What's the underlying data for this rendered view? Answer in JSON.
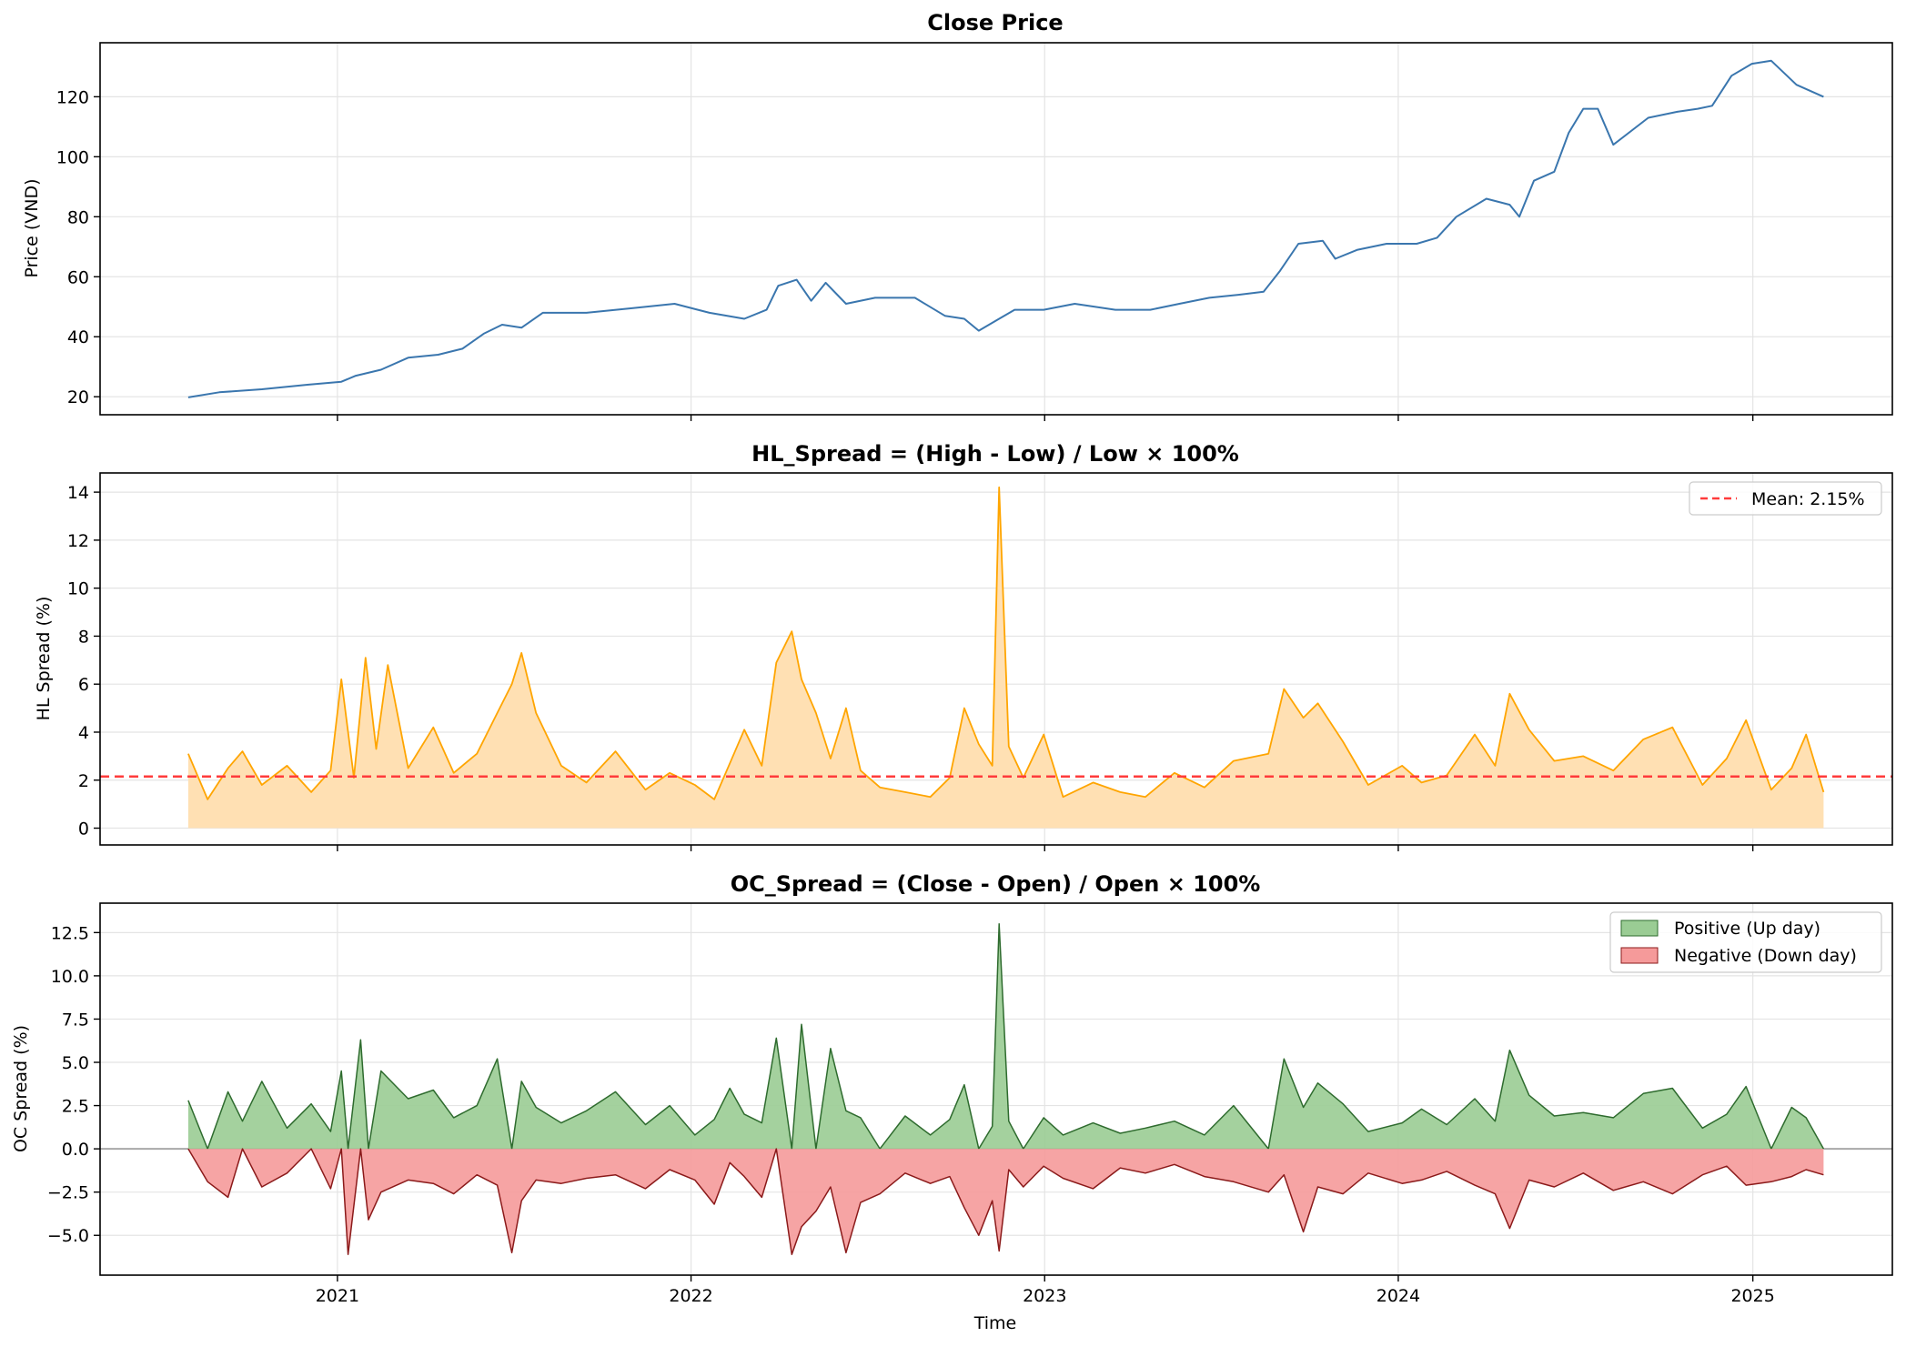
{
  "figure": {
    "xlabel": "Time",
    "x_ticks": [
      "2021",
      "2022",
      "2023",
      "2024",
      "2025"
    ],
    "x_tick_dates": [
      "2021-01-01",
      "2022-01-01",
      "2023-01-01",
      "2024-01-01",
      "2025-01-01"
    ],
    "x_range": [
      "2020-05-01",
      "2025-05-25"
    ]
  },
  "colors": {
    "price_line": "#3a76ae",
    "hl_line": "#ffa500",
    "hl_fill": "#ffe0b3",
    "mean_line": "#ff3b3b",
    "positive": "#2e6b2e",
    "positive_fill": "#9acc94",
    "negative": "#8b1a1a",
    "negative_fill": "#f59a9a",
    "zero_line": "#a8a8a8",
    "grid": "#e4e4e4"
  },
  "chart_data": [
    {
      "type": "line",
      "title": "Close Price",
      "xlabel": "",
      "ylabel": "Price (VND)",
      "ylim": [
        14,
        138
      ],
      "y_ticks": [
        "20",
        "40",
        "60",
        "80",
        "100",
        "120"
      ],
      "grid": true,
      "x": [
        "2020-07-31",
        "2020-09-01",
        "2020-10-15",
        "2020-12-01",
        "2021-01-05",
        "2021-01-20",
        "2021-02-15",
        "2021-03-15",
        "2021-04-15",
        "2021-05-10",
        "2021-06-01",
        "2021-06-20",
        "2021-07-10",
        "2021-08-01",
        "2021-09-15",
        "2021-11-01",
        "2021-12-15",
        "2022-01-20",
        "2022-02-25",
        "2022-03-20",
        "2022-04-01",
        "2022-04-20",
        "2022-05-05",
        "2022-05-20",
        "2022-06-10",
        "2022-07-10",
        "2022-08-20",
        "2022-09-20",
        "2022-10-10",
        "2022-10-25",
        "2022-11-15",
        "2022-12-01",
        "2022-12-31",
        "2023-02-01",
        "2023-03-15",
        "2023-04-20",
        "2023-05-20",
        "2023-06-20",
        "2023-07-20",
        "2023-08-15",
        "2023-09-01",
        "2023-09-20",
        "2023-10-15",
        "2023-10-28",
        "2023-11-20",
        "2023-12-20",
        "2024-01-20",
        "2024-02-10",
        "2024-03-01",
        "2024-04-01",
        "2024-04-25",
        "2024-05-05",
        "2024-05-20",
        "2024-06-10",
        "2024-06-25",
        "2024-07-10",
        "2024-07-25",
        "2024-08-10",
        "2024-09-15",
        "2024-10-15",
        "2024-11-05",
        "2024-11-20",
        "2024-12-10",
        "2024-12-31",
        "2025-01-20",
        "2025-02-15",
        "2025-03-15"
      ],
      "series": [
        {
          "values": [
            19.8,
            21.5,
            22.5,
            24,
            25,
            27,
            29,
            33,
            34,
            36,
            41,
            44,
            43,
            48,
            48,
            49.5,
            51,
            48,
            46,
            49,
            57,
            59,
            52,
            58,
            51,
            53,
            53,
            47,
            46,
            42,
            46,
            49,
            49,
            51,
            49,
            49,
            51,
            53,
            54,
            55,
            62,
            71,
            72,
            66,
            69,
            71,
            71,
            73,
            80,
            86,
            84,
            80,
            92,
            95,
            108,
            116,
            116,
            104,
            113,
            115,
            116,
            117,
            127,
            131,
            132,
            124,
            120
          ]
        }
      ]
    },
    {
      "type": "area",
      "title": "HL_Spread = (High - Low) / Low × 100%",
      "xlabel": "",
      "ylabel": "HL Spread (%)",
      "ylim": [
        -0.7,
        14.8
      ],
      "y_ticks": [
        "0",
        "2",
        "4",
        "6",
        "8",
        "10",
        "12",
        "14"
      ],
      "legend": [
        {
          "label": "Mean: 2.15%"
        }
      ],
      "legend_position": "upper right",
      "mean": 2.15,
      "grid": true,
      "x": [
        "2020-07-31",
        "2020-08-20",
        "2020-09-10",
        "2020-09-25",
        "2020-10-15",
        "2020-11-10",
        "2020-12-05",
        "2020-12-25",
        "2021-01-05",
        "2021-01-18",
        "2021-01-30",
        "2021-02-10",
        "2021-02-22",
        "2021-03-15",
        "2021-04-10",
        "2021-05-01",
        "2021-05-25",
        "2021-06-15",
        "2021-06-30",
        "2021-07-10",
        "2021-07-25",
        "2021-08-20",
        "2021-09-15",
        "2021-10-15",
        "2021-11-15",
        "2021-12-10",
        "2022-01-05",
        "2022-01-25",
        "2022-02-10",
        "2022-02-25",
        "2022-03-15",
        "2022-03-30",
        "2022-04-15",
        "2022-04-25",
        "2022-05-10",
        "2022-05-25",
        "2022-06-10",
        "2022-06-25",
        "2022-07-15",
        "2022-08-10",
        "2022-09-05",
        "2022-09-25",
        "2022-10-10",
        "2022-10-25",
        "2022-11-08",
        "2022-11-15",
        "2022-11-25",
        "2022-12-10",
        "2022-12-31",
        "2023-01-20",
        "2023-02-20",
        "2023-03-20",
        "2023-04-15",
        "2023-05-15",
        "2023-06-15",
        "2023-07-15",
        "2023-08-20",
        "2023-09-05",
        "2023-09-25",
        "2023-10-10",
        "2023-11-05",
        "2023-12-01",
        "2024-01-05",
        "2024-01-25",
        "2024-02-20",
        "2024-03-20",
        "2024-04-10",
        "2024-04-25",
        "2024-05-15",
        "2024-06-10",
        "2024-07-10",
        "2024-08-10",
        "2024-09-10",
        "2024-10-10",
        "2024-11-10",
        "2024-12-05",
        "2024-12-25",
        "2025-01-20",
        "2025-02-10",
        "2025-02-25",
        "2025-03-15"
      ],
      "series": [
        {
          "values": [
            3.1,
            1.2,
            2.5,
            3.2,
            1.8,
            2.6,
            1.5,
            2.4,
            6.2,
            2.1,
            7.1,
            3.3,
            6.8,
            2.5,
            4.2,
            2.3,
            3.1,
            4.8,
            6.0,
            7.3,
            4.8,
            2.6,
            1.9,
            3.2,
            1.6,
            2.3,
            1.8,
            1.2,
            2.7,
            4.1,
            2.6,
            6.9,
            8.2,
            6.2,
            4.8,
            2.9,
            5.0,
            2.4,
            1.7,
            1.5,
            1.3,
            2.1,
            5.0,
            3.5,
            2.6,
            14.2,
            3.4,
            2.1,
            3.9,
            1.3,
            1.9,
            1.5,
            1.3,
            2.3,
            1.7,
            2.8,
            3.1,
            5.8,
            4.6,
            5.2,
            3.6,
            1.8,
            2.6,
            1.9,
            2.2,
            3.9,
            2.6,
            5.6,
            4.1,
            2.8,
            3.0,
            2.4,
            3.7,
            4.2,
            1.8,
            2.9,
            4.5,
            1.6,
            2.5,
            3.9,
            1.5
          ]
        }
      ]
    },
    {
      "type": "area",
      "title": "OC_Spread = (Close - Open) / Open × 100%",
      "xlabel": "Time",
      "ylabel": "OC Spread (%)",
      "ylim": [
        -7.3,
        14.2
      ],
      "y_ticks": [
        "−5.0",
        "−2.5",
        "0.0",
        "2.5",
        "5.0",
        "7.5",
        "10.0",
        "12.5"
      ],
      "legend": [
        {
          "label": "Positive (Up day)"
        },
        {
          "label": "Negative (Down day)"
        }
      ],
      "legend_position": "upper right",
      "grid": true,
      "x": [
        "2020-07-31",
        "2020-08-20",
        "2020-09-10",
        "2020-09-25",
        "2020-10-15",
        "2020-11-10",
        "2020-12-05",
        "2020-12-25",
        "2021-01-05",
        "2021-01-12",
        "2021-01-25",
        "2021-02-02",
        "2021-02-15",
        "2021-03-15",
        "2021-04-10",
        "2021-05-01",
        "2021-05-25",
        "2021-06-15",
        "2021-06-30",
        "2021-07-10",
        "2021-07-25",
        "2021-08-20",
        "2021-09-15",
        "2021-10-15",
        "2021-11-15",
        "2021-12-10",
        "2022-01-05",
        "2022-01-25",
        "2022-02-10",
        "2022-02-25",
        "2022-03-15",
        "2022-03-30",
        "2022-04-15",
        "2022-04-25",
        "2022-05-10",
        "2022-05-25",
        "2022-06-10",
        "2022-06-25",
        "2022-07-15",
        "2022-08-10",
        "2022-09-05",
        "2022-09-25",
        "2022-10-10",
        "2022-10-25",
        "2022-11-08",
        "2022-11-15",
        "2022-11-25",
        "2022-12-10",
        "2022-12-31",
        "2023-01-20",
        "2023-02-20",
        "2023-03-20",
        "2023-04-15",
        "2023-05-15",
        "2023-06-15",
        "2023-07-15",
        "2023-08-20",
        "2023-09-05",
        "2023-09-25",
        "2023-10-10",
        "2023-11-05",
        "2023-12-01",
        "2024-01-05",
        "2024-01-25",
        "2024-02-20",
        "2024-03-20",
        "2024-04-10",
        "2024-04-25",
        "2024-05-15",
        "2024-06-10",
        "2024-07-10",
        "2024-08-10",
        "2024-09-10",
        "2024-10-10",
        "2024-11-10",
        "2024-12-05",
        "2024-12-25",
        "2025-01-20",
        "2025-02-10",
        "2025-02-25",
        "2025-03-15"
      ],
      "series": [
        {
          "name": "Positive (Up day)",
          "values": [
            2.8,
            0.0,
            3.3,
            1.6,
            3.9,
            1.2,
            2.6,
            1.0,
            4.5,
            0.0,
            6.3,
            0.0,
            4.5,
            2.9,
            3.4,
            1.8,
            2.5,
            5.2,
            0.0,
            3.9,
            2.4,
            1.5,
            2.2,
            3.3,
            1.4,
            2.5,
            0.8,
            1.7,
            3.5,
            2.0,
            1.5,
            6.4,
            0.0,
            7.2,
            0.0,
            5.8,
            2.2,
            1.8,
            0.0,
            1.9,
            0.8,
            1.7,
            3.7,
            0.0,
            1.3,
            13.0,
            1.6,
            0.0,
            1.8,
            0.8,
            1.5,
            0.9,
            1.2,
            1.6,
            0.8,
            2.5,
            0.0,
            5.2,
            2.4,
            3.8,
            2.6,
            1.0,
            1.5,
            2.3,
            1.4,
            2.9,
            1.6,
            5.7,
            3.1,
            1.9,
            2.1,
            1.8,
            3.2,
            3.5,
            1.2,
            2.0,
            3.6,
            0.0,
            2.4,
            1.8,
            0.0
          ]
        },
        {
          "name": "Negative (Down day)",
          "values": [
            0.0,
            -1.9,
            -2.8,
            0.0,
            -2.2,
            -1.4,
            0.0,
            -2.3,
            0.0,
            -6.1,
            0.0,
            -4.1,
            -2.5,
            -1.8,
            -2.0,
            -2.6,
            -1.5,
            -2.1,
            -6.0,
            -3.0,
            -1.8,
            -2.0,
            -1.7,
            -1.5,
            -2.3,
            -1.2,
            -1.8,
            -3.2,
            -0.8,
            -1.6,
            -2.8,
            0.0,
            -6.1,
            -4.5,
            -3.6,
            -2.2,
            -6.0,
            -3.1,
            -2.6,
            -1.4,
            -2.0,
            -1.6,
            -3.4,
            -5.0,
            -3.0,
            -5.9,
            -1.2,
            -2.2,
            -1.0,
            -1.7,
            -2.3,
            -1.1,
            -1.4,
            -0.9,
            -1.6,
            -1.9,
            -2.5,
            -1.5,
            -4.8,
            -2.2,
            -2.6,
            -1.4,
            -2.0,
            -1.8,
            -1.3,
            -2.1,
            -2.6,
            -4.6,
            -1.8,
            -2.2,
            -1.4,
            -2.4,
            -1.9,
            -2.6,
            -1.5,
            -1.0,
            -2.1,
            -1.9,
            -1.6,
            -1.2,
            -1.5
          ]
        }
      ]
    }
  ]
}
